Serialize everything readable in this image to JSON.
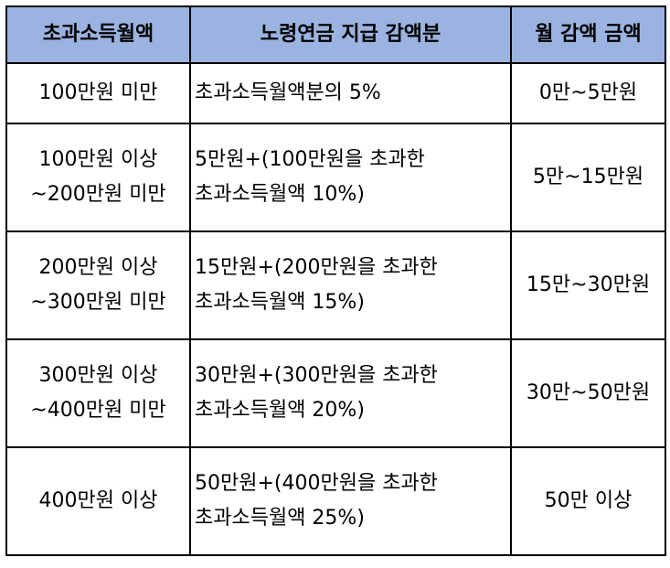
{
  "header": {
    "col1": "초과소득월액",
    "col2": "노령연금 지급 감액분",
    "col3": "월 감액 금액"
  },
  "rows": [
    {
      "range": [
        "100만원 미만"
      ],
      "formula": [
        "초과소득월액분의 5%"
      ],
      "amount": "0만~5만원"
    },
    {
      "range": [
        "100만원 이상",
        "~200만원 미만"
      ],
      "formula": [
        "5만원+(100만원을 초과한",
        "초과소득월액 10%)"
      ],
      "amount": "5만~15만원"
    },
    {
      "range": [
        "200만원 이상",
        "~300만원 미만"
      ],
      "formula": [
        "15만원+(200만원을 초과한",
        "초과소득월액 15%)"
      ],
      "amount": "15만~30만원"
    },
    {
      "range": [
        "300만원 이상",
        "~400만원 미만"
      ],
      "formula": [
        "30만원+(300만원을 초과한",
        "초과소득월액 20%)"
      ],
      "amount": "30만~50만원"
    },
    {
      "range": [
        "400만원 이상"
      ],
      "formula": [
        "50만원+(400만원을 초과한",
        "초과소득월액 25%)"
      ],
      "amount": "50만 이상"
    }
  ]
}
